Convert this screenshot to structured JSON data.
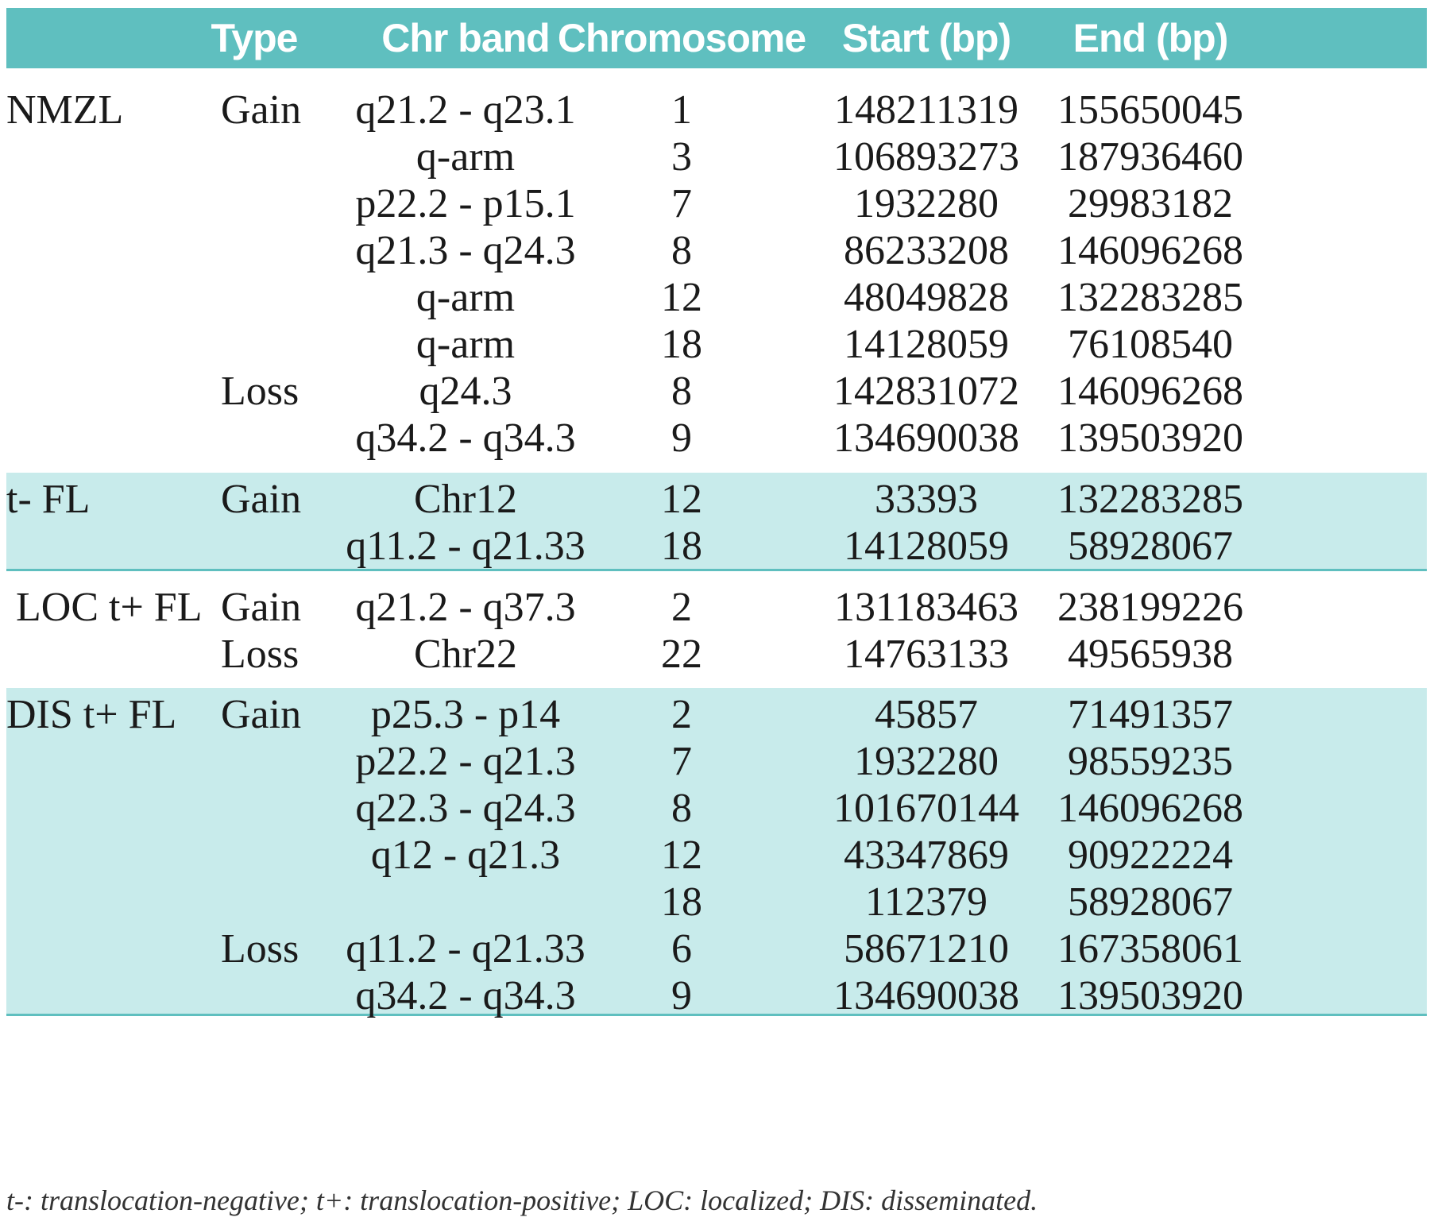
{
  "headers": {
    "type": "Type",
    "band": "Chr band",
    "chromosome": "Chromosome",
    "start": "Start (bp)",
    "end": "End (bp)"
  },
  "groups": [
    {
      "name": "NMZL",
      "rows": [
        {
          "type": "Gain",
          "band": "q21.2 - q23.1",
          "chr": "1",
          "start": "148211319",
          "end": "155650045"
        },
        {
          "type": "",
          "band": "q-arm",
          "chr": "3",
          "start": "106893273",
          "end": "187936460"
        },
        {
          "type": "",
          "band": "p22.2 - p15.1",
          "chr": "7",
          "start": "1932280",
          "end": "29983182"
        },
        {
          "type": "",
          "band": "q21.3 - q24.3",
          "chr": "8",
          "start": "86233208",
          "end": "146096268"
        },
        {
          "type": "",
          "band": "q-arm",
          "chr": "12",
          "start": "48049828",
          "end": "132283285"
        },
        {
          "type": "",
          "band": "q-arm",
          "chr": "18",
          "start": "14128059",
          "end": "76108540"
        },
        {
          "type": "Loss",
          "band": "q24.3",
          "chr": "8",
          "start": "142831072",
          "end": "146096268"
        },
        {
          "type": "",
          "band": "q34.2 - q34.3",
          "chr": "9",
          "start": "134690038",
          "end": "139503920"
        }
      ]
    },
    {
      "name": "t- FL",
      "rows": [
        {
          "type": "Gain",
          "band": "Chr12",
          "chr": "12",
          "start": "33393",
          "end": "132283285"
        },
        {
          "type": "",
          "band": "q11.2 - q21.33",
          "chr": "18",
          "start": "14128059",
          "end": "58928067"
        }
      ]
    },
    {
      "name": "LOC t+ FL",
      "rows": [
        {
          "type": "Gain",
          "band": "q21.2 - q37.3",
          "chr": "2",
          "start": "131183463",
          "end": "238199226"
        },
        {
          "type": "Loss",
          "band": "Chr22",
          "chr": "22",
          "start": "14763133",
          "end": "49565938"
        }
      ]
    },
    {
      "name": "DIS t+ FL",
      "rows": [
        {
          "type": "Gain",
          "band": "p25.3 - p14",
          "chr": "2",
          "start": "45857",
          "end": "71491357"
        },
        {
          "type": "",
          "band": "p22.2 - q21.3",
          "chr": "7",
          "start": "1932280",
          "end": "98559235"
        },
        {
          "type": "",
          "band": "q22.3 - q24.3",
          "chr": "8",
          "start": "101670144",
          "end": "146096268"
        },
        {
          "type": "",
          "band": "q12 - q21.3",
          "chr": "12",
          "start": "43347869",
          "end": "90922224"
        },
        {
          "type": "",
          "band": "",
          "chr": "18",
          "start": "112379",
          "end": "58928067"
        },
        {
          "type": "Loss",
          "band": "q11.2 - q21.33",
          "chr": "6",
          "start": "58671210",
          "end": "167358061"
        },
        {
          "type": "",
          "band": "q34.2 - q34.3",
          "chr": "9",
          "start": "134690038",
          "end": "139503920"
        }
      ]
    }
  ],
  "footnote": "t-: translocation-negative; t+: translocation-positive; LOC: localized; DIS: disseminated.",
  "colors": {
    "header_bg": "#5fbfbf",
    "shade_bg": "#c8ebeb",
    "rule": "#5fbfbf"
  }
}
